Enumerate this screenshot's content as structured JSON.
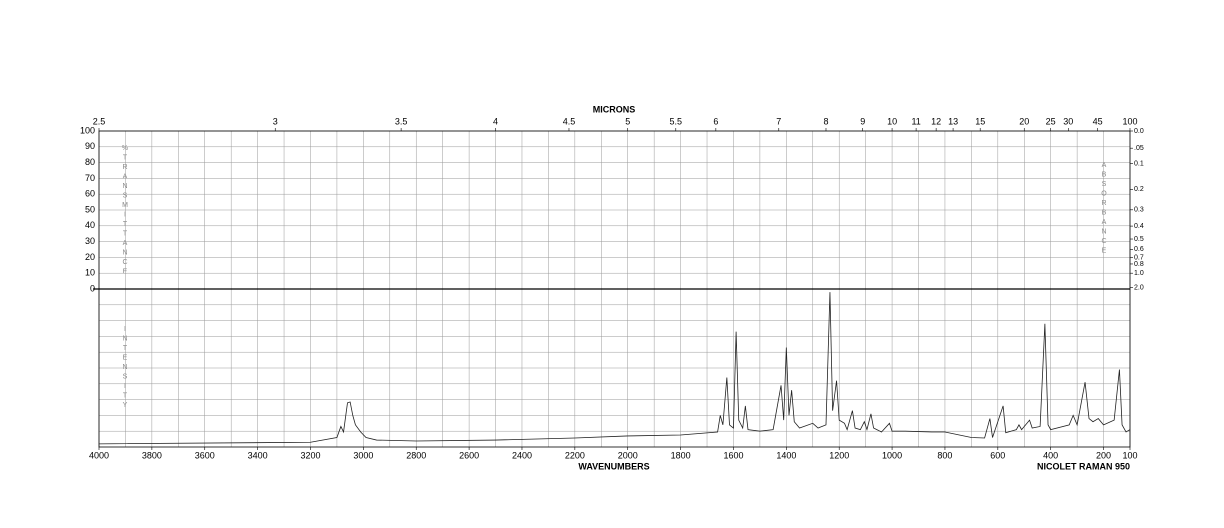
{
  "chart_data": {
    "type": "line",
    "x2_label": "MICRONS",
    "x_label": "WAVENUMBERS",
    "annotation": "NICOLET RAMAN 950",
    "transmittance_label": "%TRANSMITTANCE",
    "absorbance_label": "ABSORBANCE",
    "intensity_label": "INTENSITY",
    "xlim": [
      4000,
      100
    ],
    "xticks": [
      4000,
      3800,
      3600,
      3400,
      3200,
      3000,
      2800,
      2600,
      2400,
      2200,
      2000,
      1800,
      1600,
      1400,
      1200,
      1000,
      800,
      600,
      400,
      200,
      100
    ],
    "xgrid": [
      3900,
      3700,
      3500,
      3300,
      3100,
      2900,
      2700,
      2500,
      2300,
      2100,
      1900,
      1700,
      1500,
      1300,
      1100,
      900,
      700,
      500,
      300
    ],
    "x2ticks": [
      2.5,
      3,
      3.5,
      4,
      4.5,
      5,
      5.5,
      6,
      7,
      8,
      9,
      10,
      11,
      12,
      13,
      15,
      20,
      25,
      30,
      45,
      100
    ],
    "ylim": [
      0,
      100
    ],
    "yticks": [
      0,
      10,
      20,
      30,
      40,
      50,
      60,
      70,
      80,
      90,
      100
    ],
    "y2scale": "absorbance",
    "y2ticks": [
      {
        "value": 0,
        "label": "0.0"
      },
      {
        "value": 0.05,
        "label": ".05"
      },
      0.1,
      0.2,
      0.3,
      0.4,
      0.5,
      0.6,
      0.7,
      0.8,
      {
        "value": 1,
        "label": "1.0"
      },
      {
        "value": 2,
        "label": "2.0"
      }
    ],
    "intensity_lim": [
      0,
      100
    ],
    "intensity_grid": [
      10,
      20,
      30,
      40,
      50,
      60,
      70,
      80,
      90
    ],
    "grid": true,
    "color": "#222222",
    "x": [
      4000,
      3200,
      3100,
      3085,
      3075,
      3060,
      3050,
      3040,
      3030,
      3010,
      2990,
      2950,
      2800,
      2500,
      2200,
      2000,
      1800,
      1660,
      1650,
      1640,
      1625,
      1615,
      1600,
      1590,
      1580,
      1565,
      1555,
      1545,
      1500,
      1450,
      1420,
      1410,
      1400,
      1390,
      1380,
      1370,
      1350,
      1300,
      1280,
      1250,
      1235,
      1225,
      1210,
      1200,
      1180,
      1170,
      1150,
      1140,
      1120,
      1105,
      1095,
      1080,
      1070,
      1040,
      1010,
      1000,
      950,
      850,
      800,
      700,
      650,
      630,
      620,
      580,
      570,
      530,
      520,
      510,
      480,
      470,
      440,
      422,
      410,
      400,
      330,
      315,
      300,
      270,
      255,
      240,
      220,
      200,
      160,
      140,
      130,
      115,
      100
    ],
    "values": [
      2,
      3,
      6,
      13,
      9.5,
      28,
      28.5,
      20,
      14,
      9.5,
      6,
      4.4,
      3.8,
      4.4,
      5.7,
      7,
      7.6,
      9.5,
      20,
      14,
      44,
      14,
      12,
      73,
      17,
      12,
      26,
      11,
      10,
      11,
      39,
      17,
      63,
      20,
      36,
      16,
      12,
      15,
      12,
      14,
      98,
      23,
      42,
      17,
      15,
      11,
      23,
      12,
      11,
      16,
      11,
      21,
      12,
      9.5,
      15,
      10,
      10,
      9.5,
      9.5,
      6,
      5.7,
      18,
      6,
      26,
      9,
      11,
      14,
      11,
      17,
      12,
      13,
      78,
      14,
      11,
      14,
      20,
      14,
      41,
      18,
      16,
      18,
      14,
      17,
      49,
      14,
      9.5,
      11
    ]
  }
}
